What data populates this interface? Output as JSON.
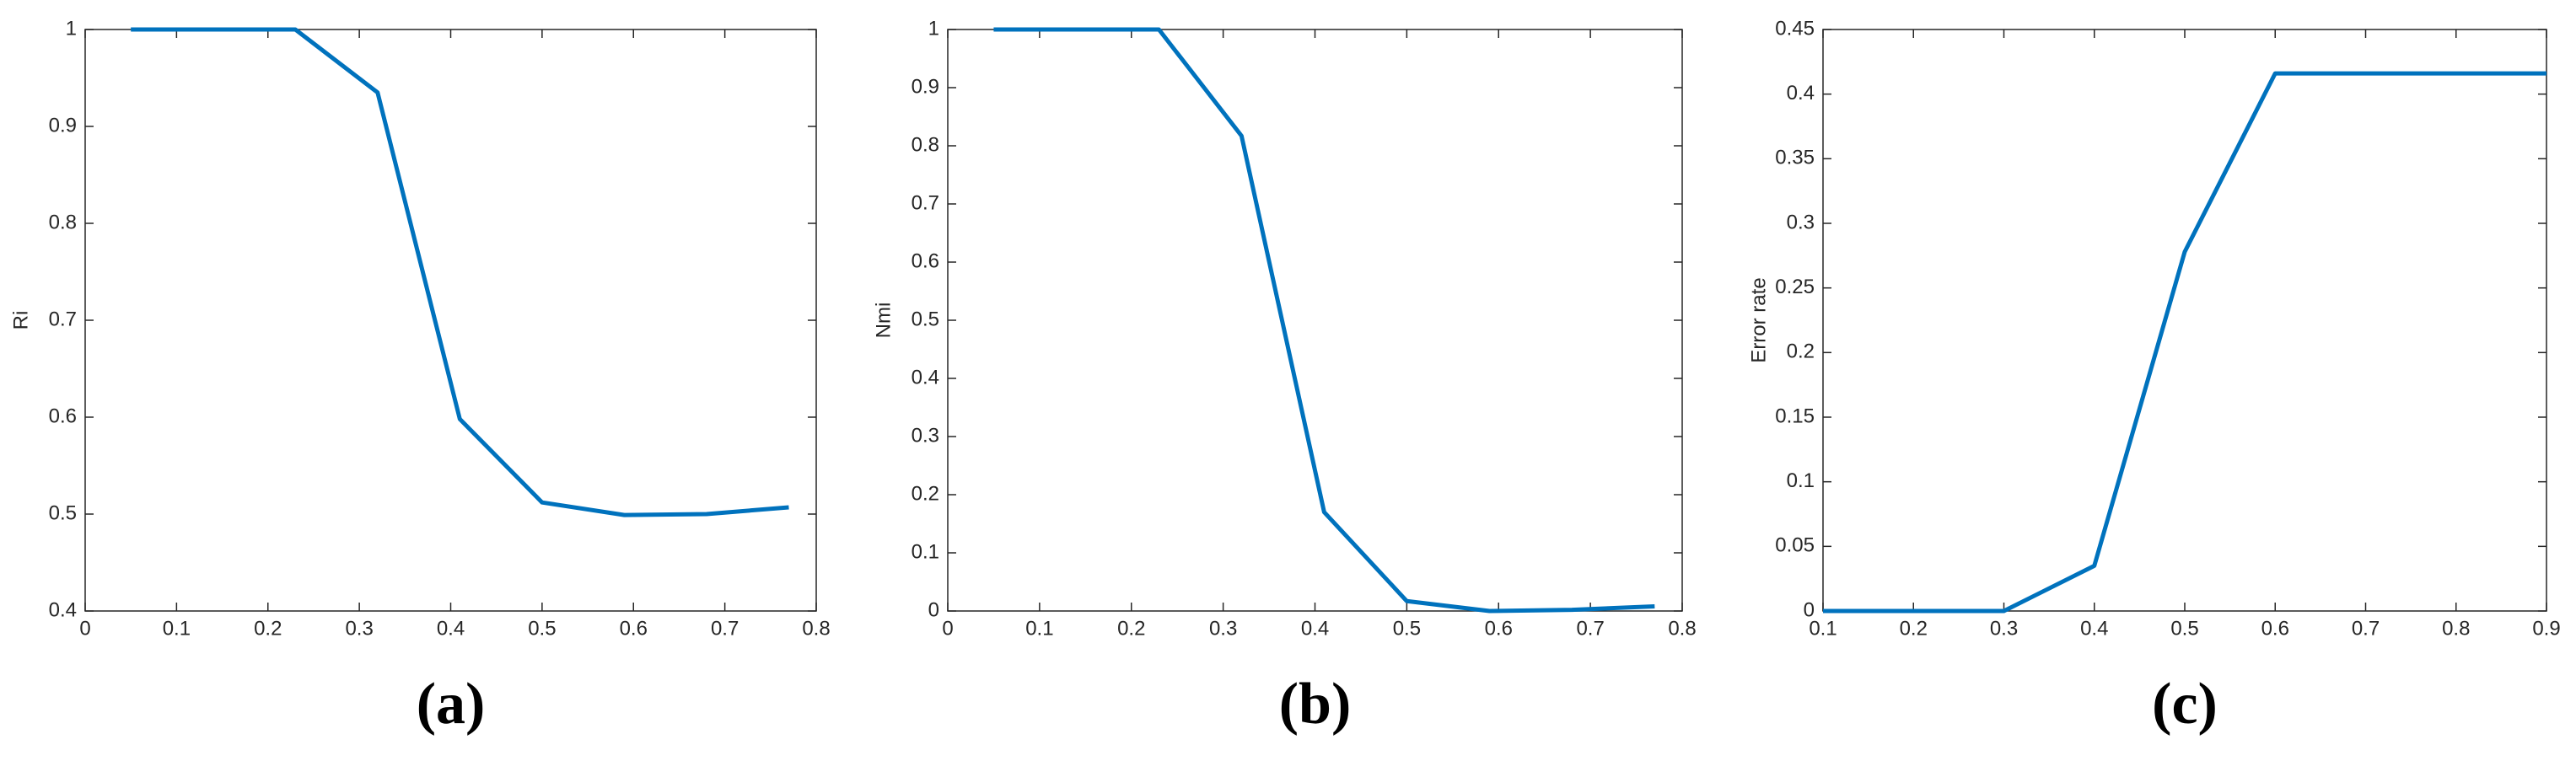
{
  "chart_data": [
    {
      "type": "line",
      "caption": "(a)",
      "y_label": "Ri",
      "x": [
        0.05,
        0.14,
        0.23,
        0.32,
        0.41,
        0.5,
        0.59,
        0.68,
        0.77
      ],
      "series": [
        {
          "color": "#0072bd",
          "values": [
            1,
            1,
            1,
            0.935,
            0.598,
            0.512,
            0.499,
            0.5,
            0.507
          ]
        }
      ],
      "xlim": [
        0,
        0.8
      ],
      "xticks": [
        0,
        0.1,
        0.2,
        0.3,
        0.4,
        0.5,
        0.6,
        0.7,
        0.8
      ],
      "ylim": [
        0.4,
        1
      ],
      "yticks": [
        0.4,
        0.5,
        0.6,
        0.7,
        0.8,
        0.9,
        1
      ]
    },
    {
      "type": "line",
      "caption": "(b)",
      "y_label": "Nmi",
      "x": [
        0.05,
        0.14,
        0.23,
        0.32,
        0.41,
        0.5,
        0.59,
        0.68,
        0.77
      ],
      "series": [
        {
          "color": "#0072bd",
          "values": [
            1,
            1,
            1,
            0.817,
            0.17,
            0.017,
            0,
            0.002,
            0.008
          ]
        }
      ],
      "xlim": [
        0,
        0.8
      ],
      "xticks": [
        0,
        0.1,
        0.2,
        0.3,
        0.4,
        0.5,
        0.6,
        0.7,
        0.8
      ],
      "ylim": [
        0,
        1
      ],
      "yticks": [
        0,
        0.1,
        0.2,
        0.3,
        0.4,
        0.5,
        0.6,
        0.7,
        0.8,
        0.9,
        1
      ]
    },
    {
      "type": "line",
      "caption": "(c)",
      "y_label": "Error rate",
      "x": [
        0.1,
        0.2,
        0.3,
        0.4,
        0.5,
        0.6,
        0.7,
        0.8,
        0.9
      ],
      "series": [
        {
          "color": "#0072bd",
          "values": [
            0,
            0,
            0,
            0.035,
            0.278,
            0.416,
            0.416,
            0.416,
            0.416
          ]
        }
      ],
      "xlim": [
        0.1,
        0.9
      ],
      "xticks": [
        0.1,
        0.2,
        0.3,
        0.4,
        0.5,
        0.6,
        0.7,
        0.8,
        0.9
      ],
      "ylim": [
        0,
        0.45
      ],
      "yticks": [
        0,
        0.05,
        0.1,
        0.15,
        0.2,
        0.25,
        0.3,
        0.35,
        0.4,
        0.45
      ]
    }
  ]
}
